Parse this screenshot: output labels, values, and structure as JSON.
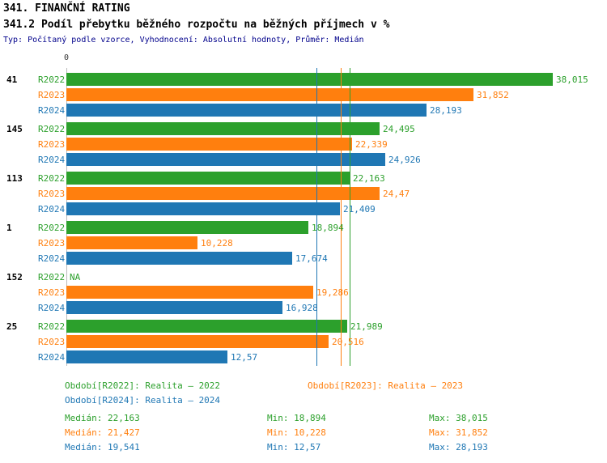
{
  "header": {
    "title": "341. FINANČNÍ RATING",
    "subtitle": "341.2 Podíl přebytku běžného rozpočtu na běžných příjmech v %",
    "meta": "Typ: Počítaný podle vzorce, Vyhodnocení: Absolutní hodnoty, Průměr: Medián"
  },
  "chart_data": {
    "type": "bar",
    "orientation": "horizontal",
    "xlim": [
      0,
      40
    ],
    "axis_zero_label": "0",
    "series": [
      {
        "id": "R2022",
        "name": "Realita – 2022",
        "color": "#2ca02c"
      },
      {
        "id": "R2023",
        "name": "Realita – 2023",
        "color": "#ff7f0e"
      },
      {
        "id": "R2024",
        "name": "Realita – 2024",
        "color": "#1f77b4"
      }
    ],
    "groups": [
      {
        "label": "41",
        "values": [
          38.015,
          31.852,
          28.193
        ],
        "display": [
          "38,015",
          "31,852",
          "28,193"
        ]
      },
      {
        "label": "145",
        "values": [
          24.495,
          22.339,
          24.926
        ],
        "display": [
          "24,495",
          "22,339",
          "24,926"
        ]
      },
      {
        "label": "113",
        "values": [
          22.163,
          24.47,
          21.409
        ],
        "display": [
          "22,163",
          "24,47",
          "21,409"
        ]
      },
      {
        "label": "1",
        "values": [
          18.894,
          10.228,
          17.674
        ],
        "display": [
          "18,894",
          "10,228",
          "17,674"
        ]
      },
      {
        "label": "152",
        "values": [
          null,
          19.286,
          16.928
        ],
        "display": [
          "NA",
          "19,286",
          "16,928"
        ]
      },
      {
        "label": "25",
        "values": [
          21.989,
          20.516,
          12.57
        ],
        "display": [
          "21,989",
          "20,516",
          "12,57"
        ]
      }
    ],
    "median_lines": [
      {
        "series": "R2022",
        "value": 22.163,
        "color": "#2ca02c"
      },
      {
        "series": "R2023",
        "value": 21.427,
        "color": "#ff7f0e"
      },
      {
        "series": "R2024",
        "value": 19.541,
        "color": "#1f77b4"
      }
    ]
  },
  "legend": {
    "items": [
      {
        "label": "Období[R2022]: Realita – 2022",
        "color": "#2ca02c"
      },
      {
        "label": "Období[R2023]: Realita – 2023",
        "color": "#ff7f0e"
      },
      {
        "label": "Období[R2024]: Realita – 2024",
        "color": "#1f77b4"
      }
    ]
  },
  "stats": {
    "rows": [
      {
        "median": "Medián: 22,163",
        "min": "Min: 18,894",
        "max": "Max: 38,015",
        "color": "#2ca02c"
      },
      {
        "median": "Medián: 21,427",
        "min": "Min: 10,228",
        "max": "Max: 31,852",
        "color": "#ff7f0e"
      },
      {
        "median": "Medián: 19,541",
        "min": "Min: 12,57",
        "max": "Max: 28,193",
        "color": "#1f77b4"
      }
    ]
  }
}
